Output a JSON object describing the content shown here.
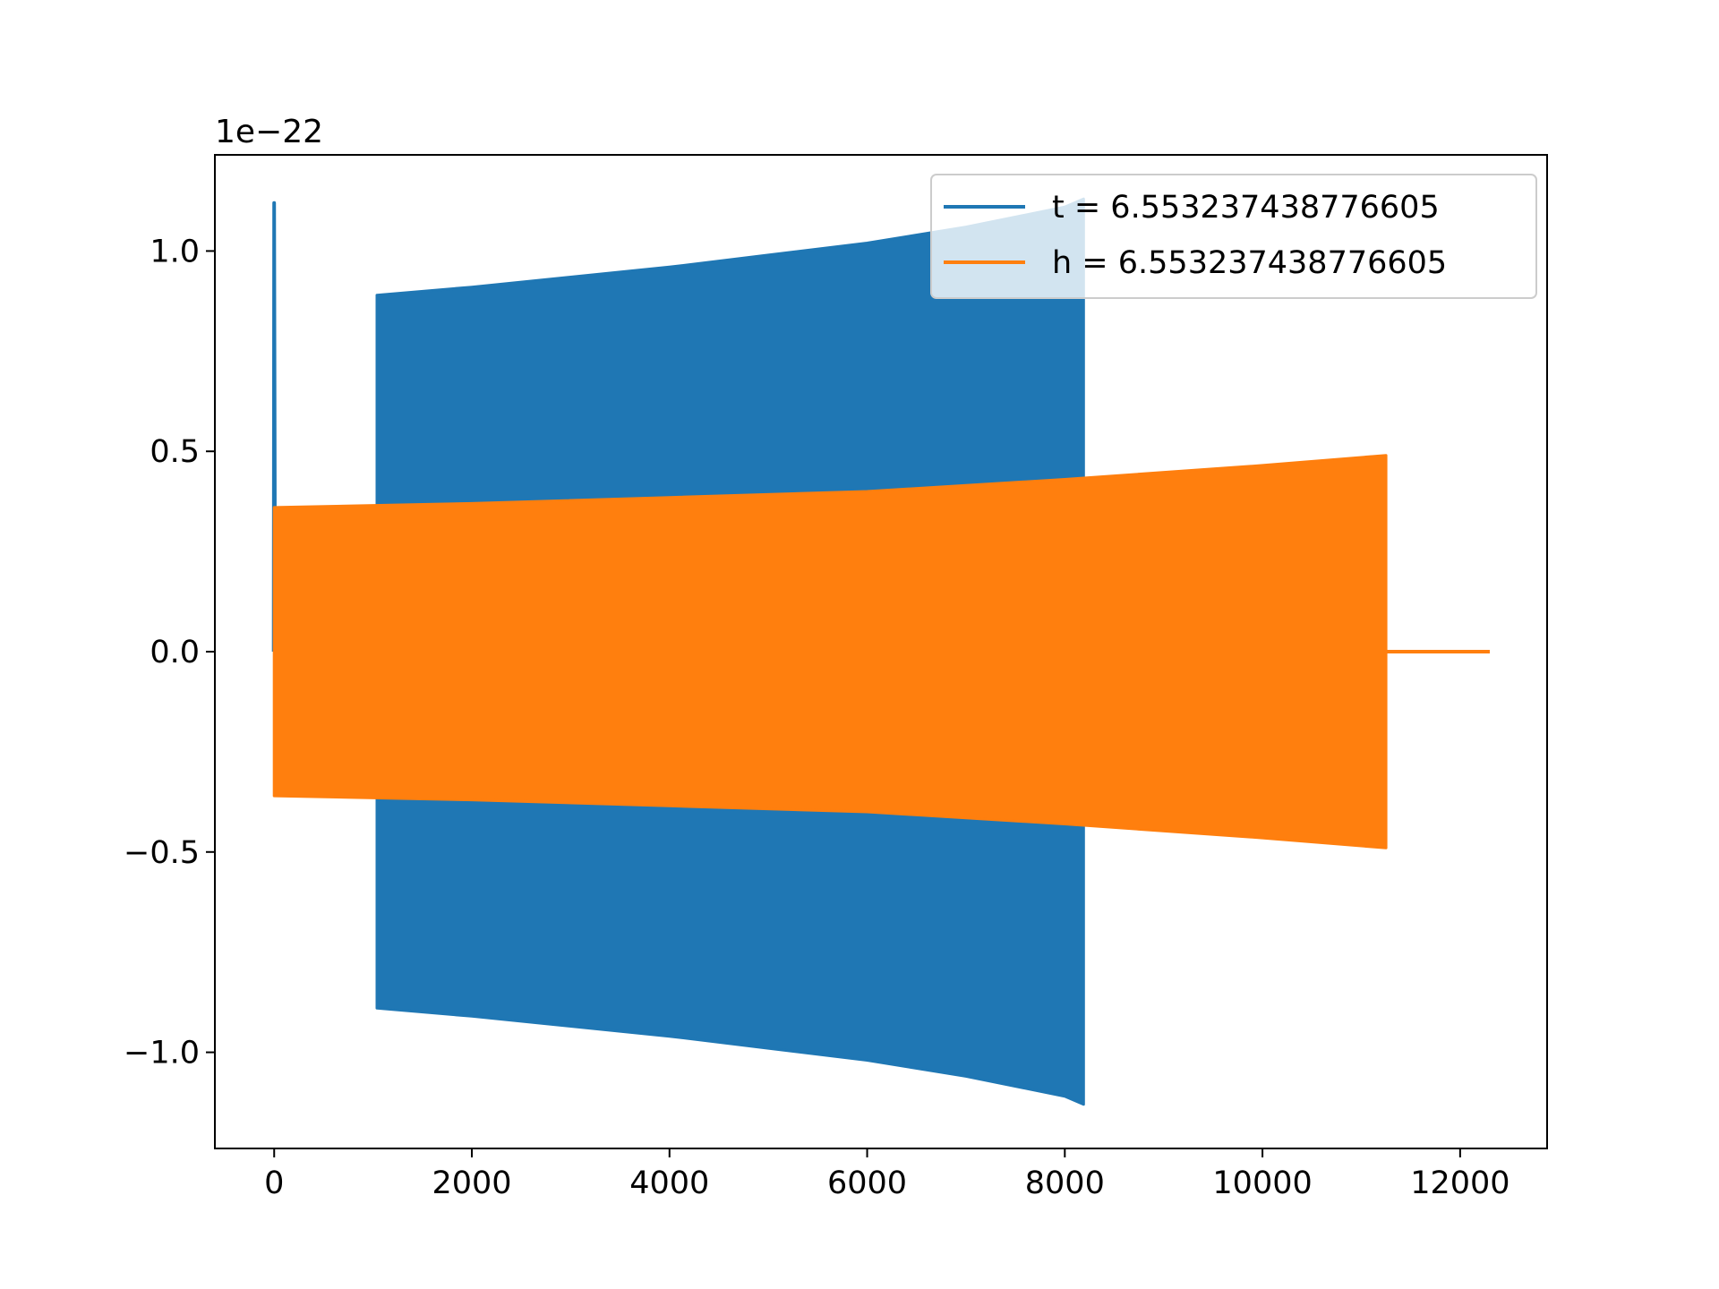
{
  "chart_data": {
    "type": "line",
    "title": "",
    "xlabel": "",
    "ylabel": "",
    "y_offset_label": "1e−22",
    "xlim": [
      -600,
      12880
    ],
    "ylim": [
      -1.24,
      1.24
    ],
    "xticks": [
      0,
      2000,
      4000,
      6000,
      8000,
      10000,
      12000
    ],
    "xtick_labels": [
      "0",
      "2000",
      "4000",
      "6000",
      "8000",
      "10000",
      "12000"
    ],
    "yticks": [
      1.0,
      0.5,
      0.0,
      -0.5,
      -1.0
    ],
    "ytick_labels": [
      "1.0",
      "0.5",
      "0.0",
      "−0.5",
      "−1.0"
    ],
    "grid": false,
    "legend_position": "upper right",
    "series": [
      {
        "name": "t = 6.553237438776605",
        "color": "#1f77b4",
        "envelope": {
          "x": [
            1040,
            2000,
            3000,
            4000,
            5000,
            6000,
            7000,
            8000,
            8190
          ],
          "upper": [
            0.89,
            0.91,
            0.935,
            0.96,
            0.99,
            1.02,
            1.06,
            1.11,
            1.13
          ],
          "lower": [
            -0.89,
            -0.91,
            -0.935,
            -0.96,
            -0.99,
            -1.02,
            -1.06,
            -1.11,
            -1.13
          ]
        },
        "spike": {
          "x": [
            -5,
            0,
            10
          ],
          "y": [
            0.0,
            1.12,
            0.0
          ]
        }
      },
      {
        "name": "h = 6.553237438776605",
        "color": "#ff7f0e",
        "envelope": {
          "x": [
            0,
            2000,
            4000,
            6000,
            8000,
            10000,
            11250
          ],
          "upper": [
            0.36,
            0.37,
            0.385,
            0.4,
            0.43,
            0.465,
            0.49
          ],
          "lower": [
            -0.36,
            -0.37,
            -0.385,
            -0.4,
            -0.43,
            -0.465,
            -0.49
          ]
        },
        "tail": {
          "x": [
            11250,
            12300
          ],
          "y": [
            0.0,
            0.0
          ]
        }
      }
    ]
  }
}
